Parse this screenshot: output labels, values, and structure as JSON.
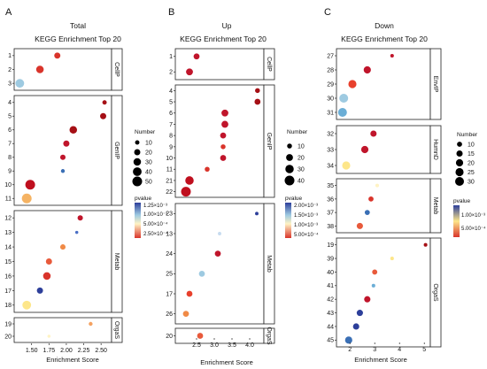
{
  "legend_titles": {
    "number": "Number",
    "pvalue": "pvalue"
  },
  "panels": [
    {
      "letter": "A",
      "title": "Total",
      "subtitle": "KEGG Enrichment Top 20",
      "xlabel": "Enrichment Score",
      "xlim": [
        1.3,
        2.6
      ],
      "xticks": [
        1.5,
        1.75,
        2.0,
        2.25,
        2.5
      ],
      "xtick_labels": [
        "1.50",
        "1.75",
        "2.00",
        "2.25",
        "2.50"
      ],
      "groups": [
        {
          "name": "CellP",
          "rows": [
            "1",
            "2",
            "3"
          ],
          "points": [
            {
              "row": "1",
              "x": 1.87,
              "number": 20,
              "color": "#d9342b"
            },
            {
              "row": "2",
              "x": 1.62,
              "number": 30,
              "color": "#d9342b"
            },
            {
              "row": "3",
              "x": 1.33,
              "number": 40,
              "color": "#9ecae1"
            }
          ]
        },
        {
          "name": "GenIP",
          "rows": [
            "4",
            "5",
            "6",
            "7",
            "8",
            "9",
            "10",
            "11"
          ],
          "points": [
            {
              "row": "4",
              "x": 2.55,
              "number": 10,
              "color": "#a50f15"
            },
            {
              "row": "5",
              "x": 2.53,
              "number": 20,
              "color": "#a50f15"
            },
            {
              "row": "6",
              "x": 2.1,
              "number": 30,
              "color": "#a50f15"
            },
            {
              "row": "7",
              "x": 2.0,
              "number": 20,
              "color": "#c0152b"
            },
            {
              "row": "8",
              "x": 1.95,
              "number": 15,
              "color": "#c0152b"
            },
            {
              "row": "9",
              "x": 1.95,
              "number": 8,
              "color": "#3a6fb5"
            },
            {
              "row": "10",
              "x": 1.48,
              "number": 50,
              "color": "#bf0f1e"
            },
            {
              "row": "11",
              "x": 1.43,
              "number": 50,
              "color": "#f5b363"
            }
          ]
        },
        {
          "name": "Metab",
          "rows": [
            "12",
            "13",
            "14",
            "15",
            "16",
            "17",
            "18"
          ],
          "points": [
            {
              "row": "12",
              "x": 2.2,
              "number": 15,
              "color": "#c0152b"
            },
            {
              "row": "13",
              "x": 2.15,
              "number": 5,
              "color": "#4a6fc5"
            },
            {
              "row": "14",
              "x": 1.95,
              "number": 15,
              "color": "#f08a46"
            },
            {
              "row": "15",
              "x": 1.75,
              "number": 20,
              "color": "#e85a3b"
            },
            {
              "row": "16",
              "x": 1.72,
              "number": 30,
              "color": "#d9342b"
            },
            {
              "row": "17",
              "x": 1.62,
              "number": 20,
              "color": "#2d3f9a"
            },
            {
              "row": "18",
              "x": 1.43,
              "number": 40,
              "color": "#fde68a"
            }
          ]
        },
        {
          "name": "OrgaS",
          "rows": [
            "19",
            "20"
          ],
          "points": [
            {
              "row": "19",
              "x": 2.35,
              "number": 8,
              "color": "#f4a261"
            },
            {
              "row": "20",
              "x": 1.75,
              "number": 5,
              "color": "#fff3c4"
            }
          ]
        }
      ],
      "size_legend": {
        "title": "Number",
        "values": [
          10,
          20,
          30,
          40,
          50
        ]
      },
      "color_legend": {
        "title": "pvalue",
        "labels": [
          "1.25×10⁻³",
          "1.00×10⁻³",
          "5.00×10⁻⁴",
          "2.50×10⁻⁴"
        ]
      }
    },
    {
      "letter": "B",
      "title": "Up",
      "subtitle": "KEGG Enrichment Top 20",
      "xlabel": "Enrichment Score",
      "xlim": [
        2.0,
        4.3
      ],
      "xticks": [
        2.5,
        3.0,
        3.5,
        4.0
      ],
      "xtick_labels": [
        "2.5",
        "3.0",
        "3.5",
        "4.0"
      ],
      "groups": [
        {
          "name": "CellP",
          "rows": [
            "1",
            "2"
          ],
          "points": [
            {
              "row": "1",
              "x": 2.5,
              "number": 15,
              "color": "#c0152b"
            },
            {
              "row": "2",
              "x": 2.3,
              "number": 20,
              "color": "#c0152b"
            }
          ]
        },
        {
          "name": "GenIP",
          "rows": [
            "4",
            "5",
            "6",
            "7",
            "8",
            "9",
            "10",
            "11",
            "21",
            "22"
          ],
          "points": [
            {
              "row": "4",
              "x": 4.22,
              "number": 10,
              "color": "#a50f15"
            },
            {
              "row": "5",
              "x": 4.22,
              "number": 15,
              "color": "#a50f15"
            },
            {
              "row": "6",
              "x": 3.3,
              "number": 20,
              "color": "#c0152b"
            },
            {
              "row": "7",
              "x": 3.3,
              "number": 20,
              "color": "#c0152b"
            },
            {
              "row": "8",
              "x": 3.25,
              "number": 15,
              "color": "#c0152b"
            },
            {
              "row": "9",
              "x": 3.25,
              "number": 10,
              "color": "#d9342b"
            },
            {
              "row": "10",
              "x": 3.25,
              "number": 15,
              "color": "#c0152b"
            },
            {
              "row": "11",
              "x": 2.8,
              "number": 10,
              "color": "#d9342b"
            },
            {
              "row": "21",
              "x": 2.3,
              "number": 30,
              "color": "#bf0f1e"
            },
            {
              "row": "22",
              "x": 2.2,
              "number": 40,
              "color": "#bf0f1e"
            }
          ]
        },
        {
          "name": "Metab",
          "rows": [
            "23",
            "13",
            "24",
            "25",
            "17",
            "26"
          ],
          "points": [
            {
              "row": "23",
              "x": 4.2,
              "number": 5,
              "color": "#2d3f9a"
            },
            {
              "row": "13",
              "x": 3.15,
              "number": 5,
              "color": "#c6dbef"
            },
            {
              "row": "24",
              "x": 3.1,
              "number": 15,
              "color": "#c0152b"
            },
            {
              "row": "25",
              "x": 2.65,
              "number": 15,
              "color": "#9ecae1"
            },
            {
              "row": "17",
              "x": 2.3,
              "number": 15,
              "color": "#e8402c"
            },
            {
              "row": "26",
              "x": 2.2,
              "number": 15,
              "color": "#f08a46"
            }
          ]
        },
        {
          "name": "OrgaS",
          "rows": [
            "20"
          ],
          "points": [
            {
              "row": "20",
              "x": 2.6,
              "number": 15,
              "color": "#e85a3b"
            }
          ]
        }
      ],
      "size_legend": {
        "title": "Number",
        "values": [
          10,
          20,
          30,
          40
        ]
      },
      "color_legend": {
        "title": "pvalue",
        "labels": [
          "2.00×10⁻³",
          "1.50×10⁻³",
          "1.00×10⁻³",
          "5.00×10⁻⁴"
        ]
      }
    },
    {
      "letter": "C",
      "title": "Down",
      "subtitle": "KEGG Enrichment Top 20",
      "xlabel": "Enrichment Score",
      "xlim": [
        1.6,
        5.1
      ],
      "xticks": [
        2,
        3,
        4,
        5
      ],
      "xtick_labels": [
        "2",
        "3",
        "4",
        "5"
      ],
      "groups": [
        {
          "name": "EnvIP",
          "rows": [
            "27",
            "28",
            "29",
            "30",
            "31"
          ],
          "points": [
            {
              "row": "27",
              "x": 3.7,
              "number": 5,
              "color": "#c0152b"
            },
            {
              "row": "28",
              "x": 2.7,
              "number": 20,
              "color": "#c0152b"
            },
            {
              "row": "29",
              "x": 2.1,
              "number": 25,
              "color": "#e8402c"
            },
            {
              "row": "30",
              "x": 1.75,
              "number": 30,
              "color": "#9ecae1"
            },
            {
              "row": "31",
              "x": 1.7,
              "number": 30,
              "color": "#6baed6"
            }
          ]
        },
        {
          "name": "HumnD",
          "rows": [
            "32",
            "33",
            "34"
          ],
          "points": [
            {
              "row": "32",
              "x": 2.95,
              "number": 15,
              "color": "#c0152b"
            },
            {
              "row": "33",
              "x": 2.6,
              "number": 20,
              "color": "#c0152b"
            },
            {
              "row": "34",
              "x": 1.85,
              "number": 25,
              "color": "#fde68a"
            }
          ]
        },
        {
          "name": "Metab",
          "rows": [
            "35",
            "36",
            "37",
            "38"
          ],
          "points": [
            {
              "row": "35",
              "x": 3.1,
              "number": 5,
              "color": "#fff3c4"
            },
            {
              "row": "36",
              "x": 2.85,
              "number": 10,
              "color": "#d9342b"
            },
            {
              "row": "37",
              "x": 2.7,
              "number": 10,
              "color": "#3a6fb5"
            },
            {
              "row": "38",
              "x": 2.4,
              "number": 15,
              "color": "#e85a3b"
            }
          ]
        },
        {
          "name": "OrgaS",
          "rows": [
            "19",
            "39",
            "40",
            "41",
            "42",
            "43",
            "44",
            "45"
          ],
          "points": [
            {
              "row": "19",
              "x": 5.05,
              "number": 5,
              "color": "#a50f15"
            },
            {
              "row": "39",
              "x": 3.7,
              "number": 5,
              "color": "#fde68a"
            },
            {
              "row": "40",
              "x": 3.0,
              "number": 10,
              "color": "#e85a3b"
            },
            {
              "row": "41",
              "x": 2.95,
              "number": 5,
              "color": "#6baed6"
            },
            {
              "row": "42",
              "x": 2.7,
              "number": 15,
              "color": "#c0152b"
            },
            {
              "row": "43",
              "x": 2.4,
              "number": 15,
              "color": "#2d3f9a"
            },
            {
              "row": "44",
              "x": 2.25,
              "number": 15,
              "color": "#2d3f9a"
            },
            {
              "row": "45",
              "x": 1.95,
              "number": 20,
              "color": "#3a6fb5"
            }
          ]
        }
      ],
      "size_legend": {
        "title": "Number",
        "values": [
          10,
          15,
          20,
          25,
          30
        ]
      },
      "color_legend": {
        "title": "pvalue",
        "labels": [
          "1.00×10⁻³",
          "5.00×10⁻⁴"
        ]
      }
    }
  ],
  "chart_data": [
    {
      "type": "scatter",
      "panel": "A",
      "title": "KEGG Enrichment Top 20",
      "xlabel": "Enrichment Score",
      "xlim": [
        1.3,
        2.6
      ],
      "size_by": "Number",
      "color_by": "pvalue",
      "note": "see panels[0].groups for points"
    },
    {
      "type": "scatter",
      "panel": "B",
      "title": "KEGG Enrichment Top 20",
      "xlabel": "Enrichment Score",
      "xlim": [
        2.0,
        4.3
      ],
      "size_by": "Number",
      "color_by": "pvalue",
      "note": "see panels[1].groups for points"
    },
    {
      "type": "scatter",
      "panel": "C",
      "title": "KEGG Enrichment Top 20",
      "xlabel": "Enrichment Score",
      "xlim": [
        1.6,
        5.1
      ],
      "size_by": "Number",
      "color_by": "pvalue",
      "note": "see panels[2].groups for points"
    }
  ]
}
